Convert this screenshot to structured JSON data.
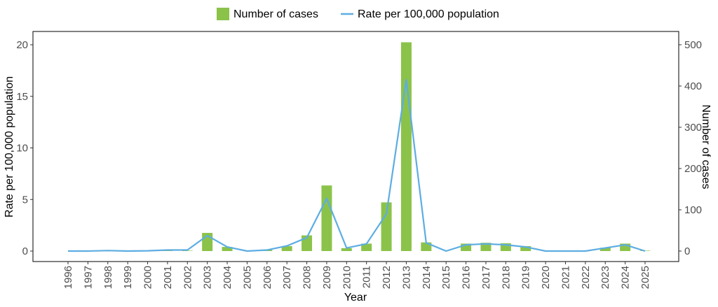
{
  "chart_data": {
    "type": "bar",
    "categories": [
      "1996",
      "1997",
      "1998",
      "1999",
      "2000",
      "2001",
      "2002",
      "2003",
      "2004",
      "2005",
      "2006",
      "2007",
      "2008",
      "2009",
      "2010",
      "2011",
      "2012",
      "2013",
      "2014",
      "2015",
      "2016",
      "2017",
      "2018",
      "2019",
      "2020",
      "2021",
      "2022",
      "2023",
      "2024",
      "2025"
    ],
    "series": [
      {
        "name": "Number of cases",
        "type": "bar",
        "axis": "right",
        "color": "#8bc34a",
        "values": [
          0,
          0,
          0,
          0,
          0,
          2,
          1,
          44,
          10,
          0,
          3,
          12,
          38,
          159,
          7,
          18,
          118,
          506,
          21,
          0,
          18,
          20,
          19,
          12,
          0,
          0,
          0,
          8,
          18,
          1
        ]
      },
      {
        "name": "Rate per 100,000 population",
        "type": "line",
        "axis": "left",
        "color": "#5dade2",
        "values": [
          0,
          0,
          0.05,
          0,
          0.03,
          0.1,
          0.1,
          1.5,
          0.4,
          0,
          0.1,
          0.5,
          1.3,
          5.1,
          0.3,
          0.7,
          3.6,
          16.6,
          0.8,
          0,
          0.6,
          0.7,
          0.6,
          0.4,
          0,
          0,
          0,
          0.3,
          0.6,
          0
        ]
      }
    ],
    "xlabel": "Year",
    "ylabel": "Rate per 100,000 population",
    "y2label": "Number of cases",
    "ylim": [
      0,
      21.4
    ],
    "y2lim": [
      0,
      535
    ],
    "yticks": [
      0,
      5,
      10,
      15,
      20
    ],
    "y2ticks": [
      0,
      100,
      200,
      300,
      400,
      500
    ],
    "legend_position": "top",
    "grid": false
  }
}
